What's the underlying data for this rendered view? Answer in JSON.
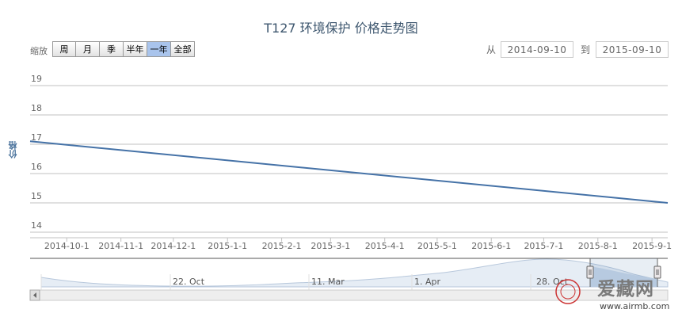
{
  "title": "T127 环境保护  价格走势图",
  "zoom": {
    "label": "缩放",
    "buttons": [
      "周",
      "月",
      "季",
      "半年",
      "一年",
      "全部"
    ],
    "active_index": 4
  },
  "range": {
    "from_label": "从",
    "from_value": "2014-09-10",
    "to_label": "到",
    "to_value": "2015-09-10"
  },
  "navigator": {
    "labels": [
      "22. Oct",
      "11. Mar",
      "1. Apr",
      "28. Oct"
    ]
  },
  "watermark": {
    "logo": "爱藏网",
    "url": "www.airmb.com"
  },
  "colors": {
    "line": "#4572a7",
    "grid": "#c0c0c0",
    "axis_text": "#666666",
    "button_active": "#a9c4ec",
    "title": "#3e576f",
    "ylabel": "#4d759e",
    "navigator_fill": "#c8d7e9"
  },
  "chart_data": {
    "type": "line",
    "title": "T127 环境保护  价格走势图",
    "ylabel": "价格",
    "xlabel": "",
    "ylim": [
      14,
      19
    ],
    "yticks": [
      14,
      15,
      16,
      17,
      18,
      19
    ],
    "x_range": [
      "2014-09-10",
      "2015-09-10"
    ],
    "xticks": [
      "2014-10-1",
      "2014-11-1",
      "2014-12-1",
      "2015-1-1",
      "2015-2-1",
      "2015-3-1",
      "2015-4-1",
      "2015-5-1",
      "2015-6-1",
      "2015-7-1",
      "2015-8-1",
      "2015-9-1"
    ],
    "series": [
      {
        "values": [
          {
            "x": "2014-09-10",
            "y": 17.1
          },
          {
            "x": "2015-09-10",
            "y": 15.0
          }
        ]
      }
    ],
    "grid": true,
    "legend": "none"
  }
}
